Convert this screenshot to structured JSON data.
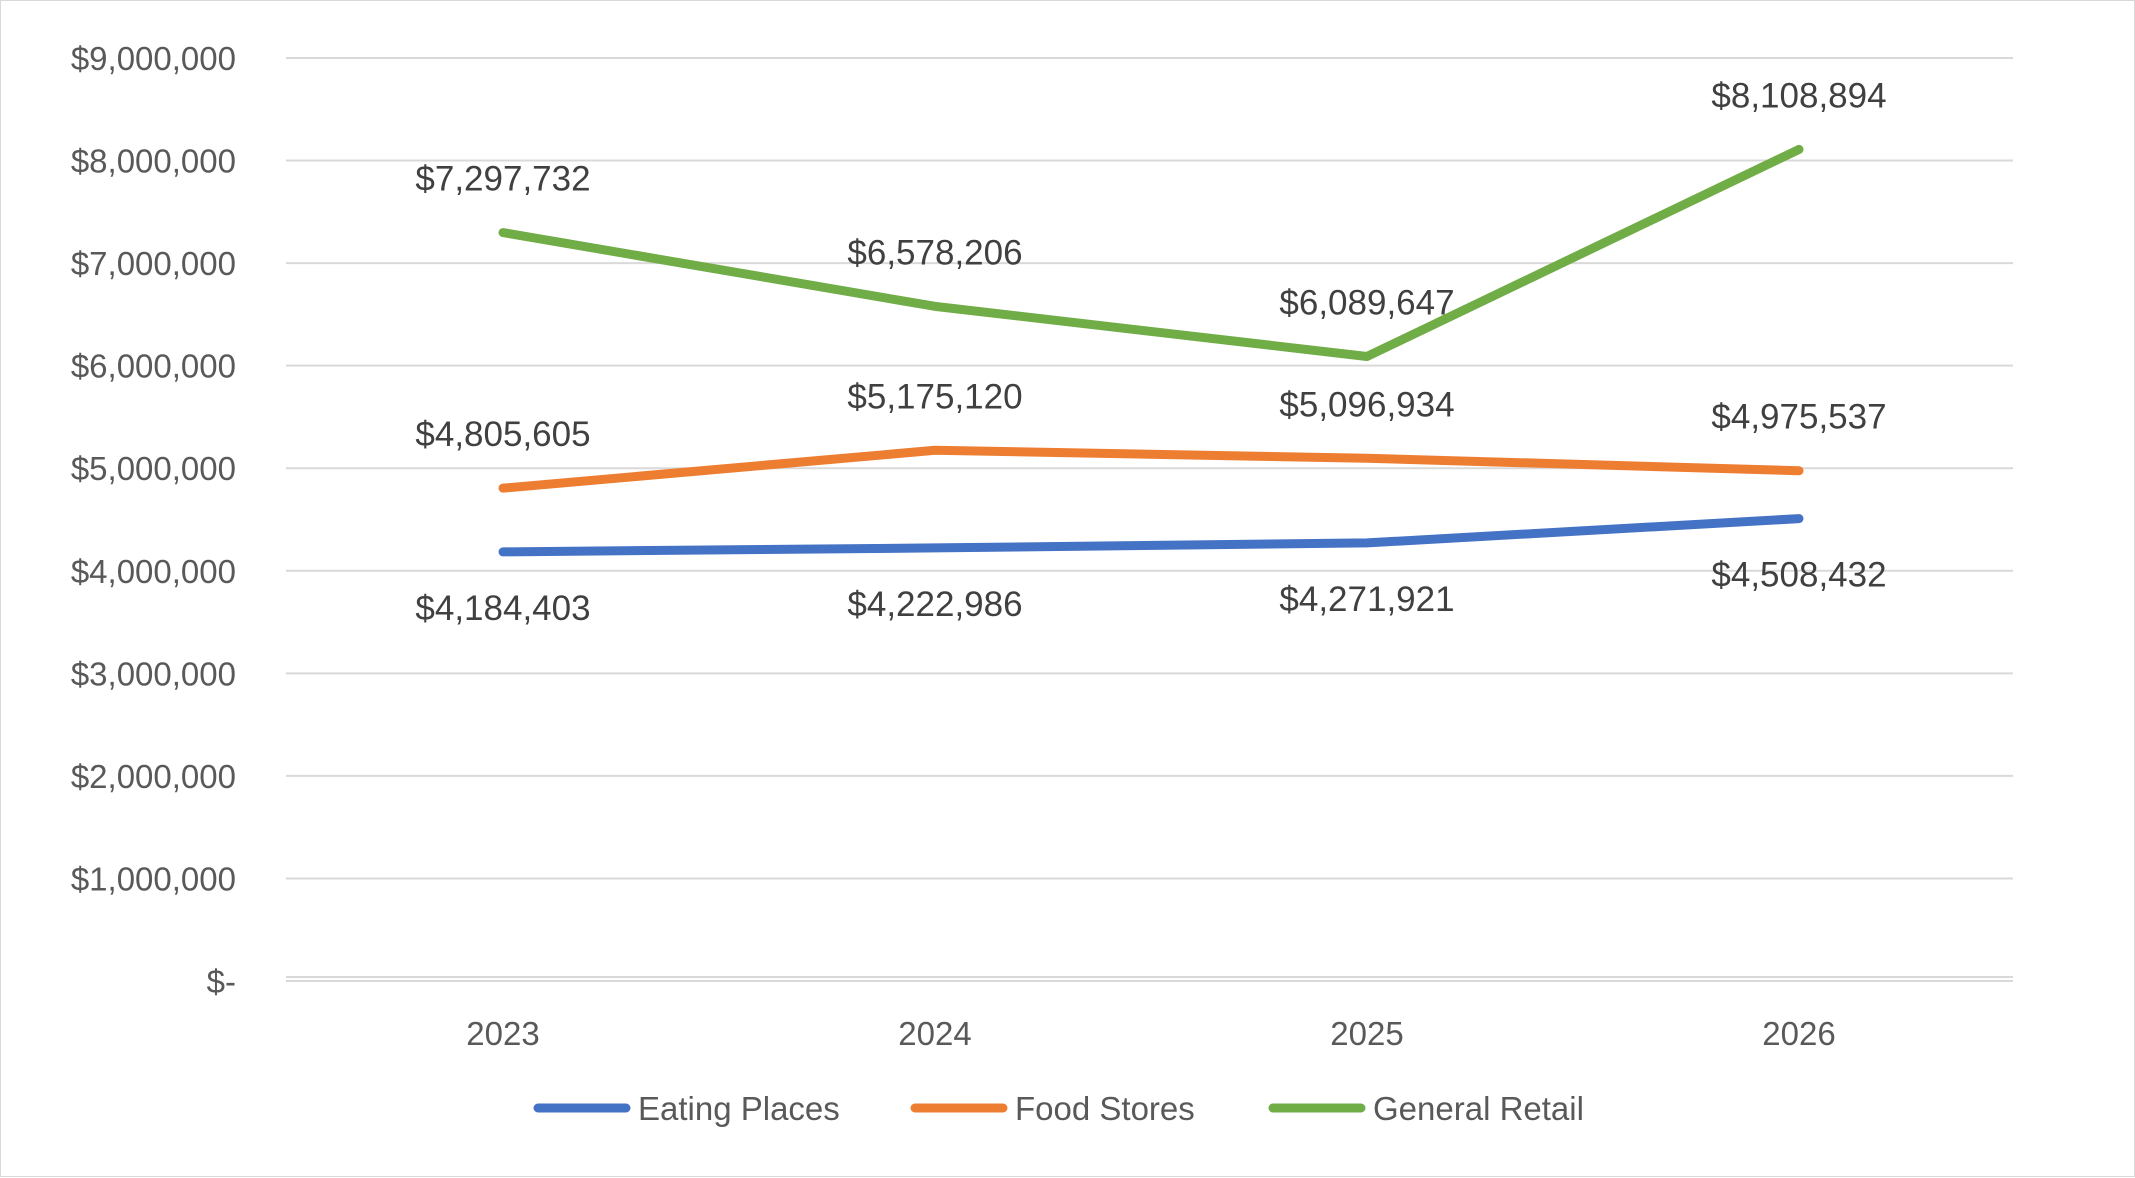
{
  "chart_data": {
    "type": "line",
    "title": "",
    "xlabel": "",
    "ylabel": "",
    "categories": [
      "2023",
      "2024",
      "2025",
      "2026"
    ],
    "ylim": [
      0,
      9000000
    ],
    "y_ticks": [
      {
        "value": 0,
        "label": "$-"
      },
      {
        "value": 1000000,
        "label": "$1,000,000"
      },
      {
        "value": 2000000,
        "label": "$2,000,000"
      },
      {
        "value": 3000000,
        "label": "$3,000,000"
      },
      {
        "value": 4000000,
        "label": "$4,000,000"
      },
      {
        "value": 5000000,
        "label": "$5,000,000"
      },
      {
        "value": 6000000,
        "label": "$6,000,000"
      },
      {
        "value": 7000000,
        "label": "$7,000,000"
      },
      {
        "value": 8000000,
        "label": "$8,000,000"
      },
      {
        "value": 9000000,
        "label": "$9,000,000"
      }
    ],
    "grid": true,
    "legend_position": "bottom",
    "series": [
      {
        "name": "Eating Places",
        "color": "#4472C4",
        "values": [
          4184403,
          4222986,
          4271921,
          4508432
        ],
        "data_labels": [
          "$4,184,403",
          "$4,222,986",
          "$4,271,921",
          "$4,508,432"
        ],
        "label_position": "below"
      },
      {
        "name": "Food Stores",
        "color": "#ED7D31",
        "values": [
          4805605,
          5175120,
          5096934,
          4975537
        ],
        "data_labels": [
          "$4,805,605",
          "$5,175,120",
          "$5,096,934",
          "$4,975,537"
        ],
        "label_position": "above"
      },
      {
        "name": "General Retail",
        "color": "#70AD47",
        "values": [
          7297732,
          6578206,
          6089647,
          8108894
        ],
        "data_labels": [
          "$7,297,732",
          "$6,578,206",
          "$6,089,647",
          "$8,108,894"
        ],
        "label_position": "above"
      }
    ]
  }
}
